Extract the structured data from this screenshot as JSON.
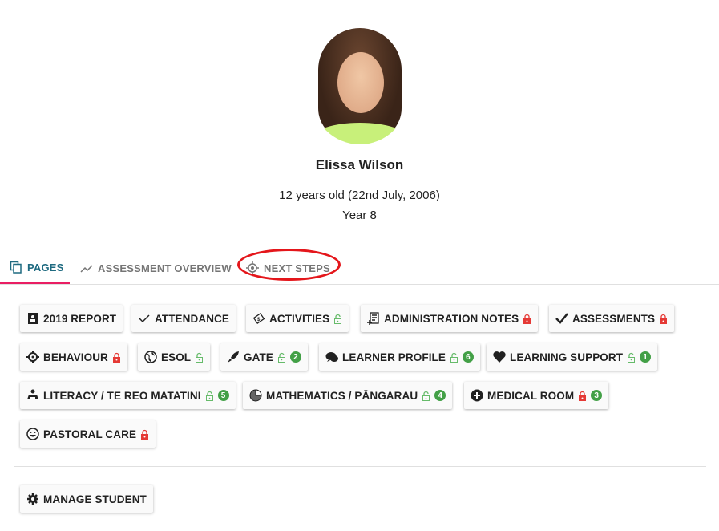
{
  "student": {
    "name": "Elissa Wilson",
    "age": "12 years old (22nd July, 2006)",
    "year": "Year 8"
  },
  "tabs": [
    {
      "label": "PAGES",
      "icon": "copy-icon",
      "active": true
    },
    {
      "label": "ASSESSMENT OVERVIEW",
      "icon": "trending-icon"
    },
    {
      "label": "NEXT STEPS",
      "icon": "crosshair-icon",
      "highlighted": true
    }
  ],
  "pages": [
    {
      "label": "2019 REPORT",
      "icon": "contact-book-icon"
    },
    {
      "label": "ATTENDANCE",
      "icon": "check-icon"
    },
    {
      "label": "ACTIVITIES",
      "icon": "ticket-icon",
      "lock": "unlocked"
    },
    {
      "label": "ADMINISTRATION NOTES",
      "icon": "note-add-icon",
      "lock": "locked"
    },
    {
      "label": "ASSESSMENTS",
      "icon": "check-bold-icon",
      "lock": "locked"
    },
    {
      "label": "BEHAVIOUR",
      "icon": "crosshair-icon",
      "lock": "locked"
    },
    {
      "label": "ESOL",
      "icon": "globe-icon",
      "lock": "unlocked"
    },
    {
      "label": "GATE",
      "icon": "rocket-icon",
      "lock": "unlocked",
      "count": "2"
    },
    {
      "label": "LEARNER PROFILE",
      "icon": "comments-icon",
      "lock": "unlocked",
      "count": "6"
    },
    {
      "label": "LEARNING SUPPORT",
      "icon": "heart-icon",
      "lock": "unlocked",
      "count": "1"
    },
    {
      "label": "LITERACY / TE REO MATATINI",
      "icon": "reader-icon",
      "lock": "unlocked",
      "count": "5"
    },
    {
      "label": "MATHEMATICS / PĀNGARAU",
      "icon": "pie-chart-icon",
      "lock": "unlocked",
      "count": "4"
    },
    {
      "label": "MEDICAL ROOM",
      "icon": "plus-circle-icon",
      "lock": "locked",
      "count": "3"
    },
    {
      "label": "PASTORAL CARE",
      "icon": "smile-icon",
      "lock": "locked"
    }
  ],
  "manage": {
    "label": "MANAGE STUDENT",
    "icon": "gear-icon"
  },
  "colors": {
    "locked": "#e53935",
    "unlocked": "#66bb6a",
    "badge": "#43a047",
    "active_tab": "#1e6a80",
    "tab_indicator": "#e91e63",
    "highlight": "#e4161b"
  }
}
